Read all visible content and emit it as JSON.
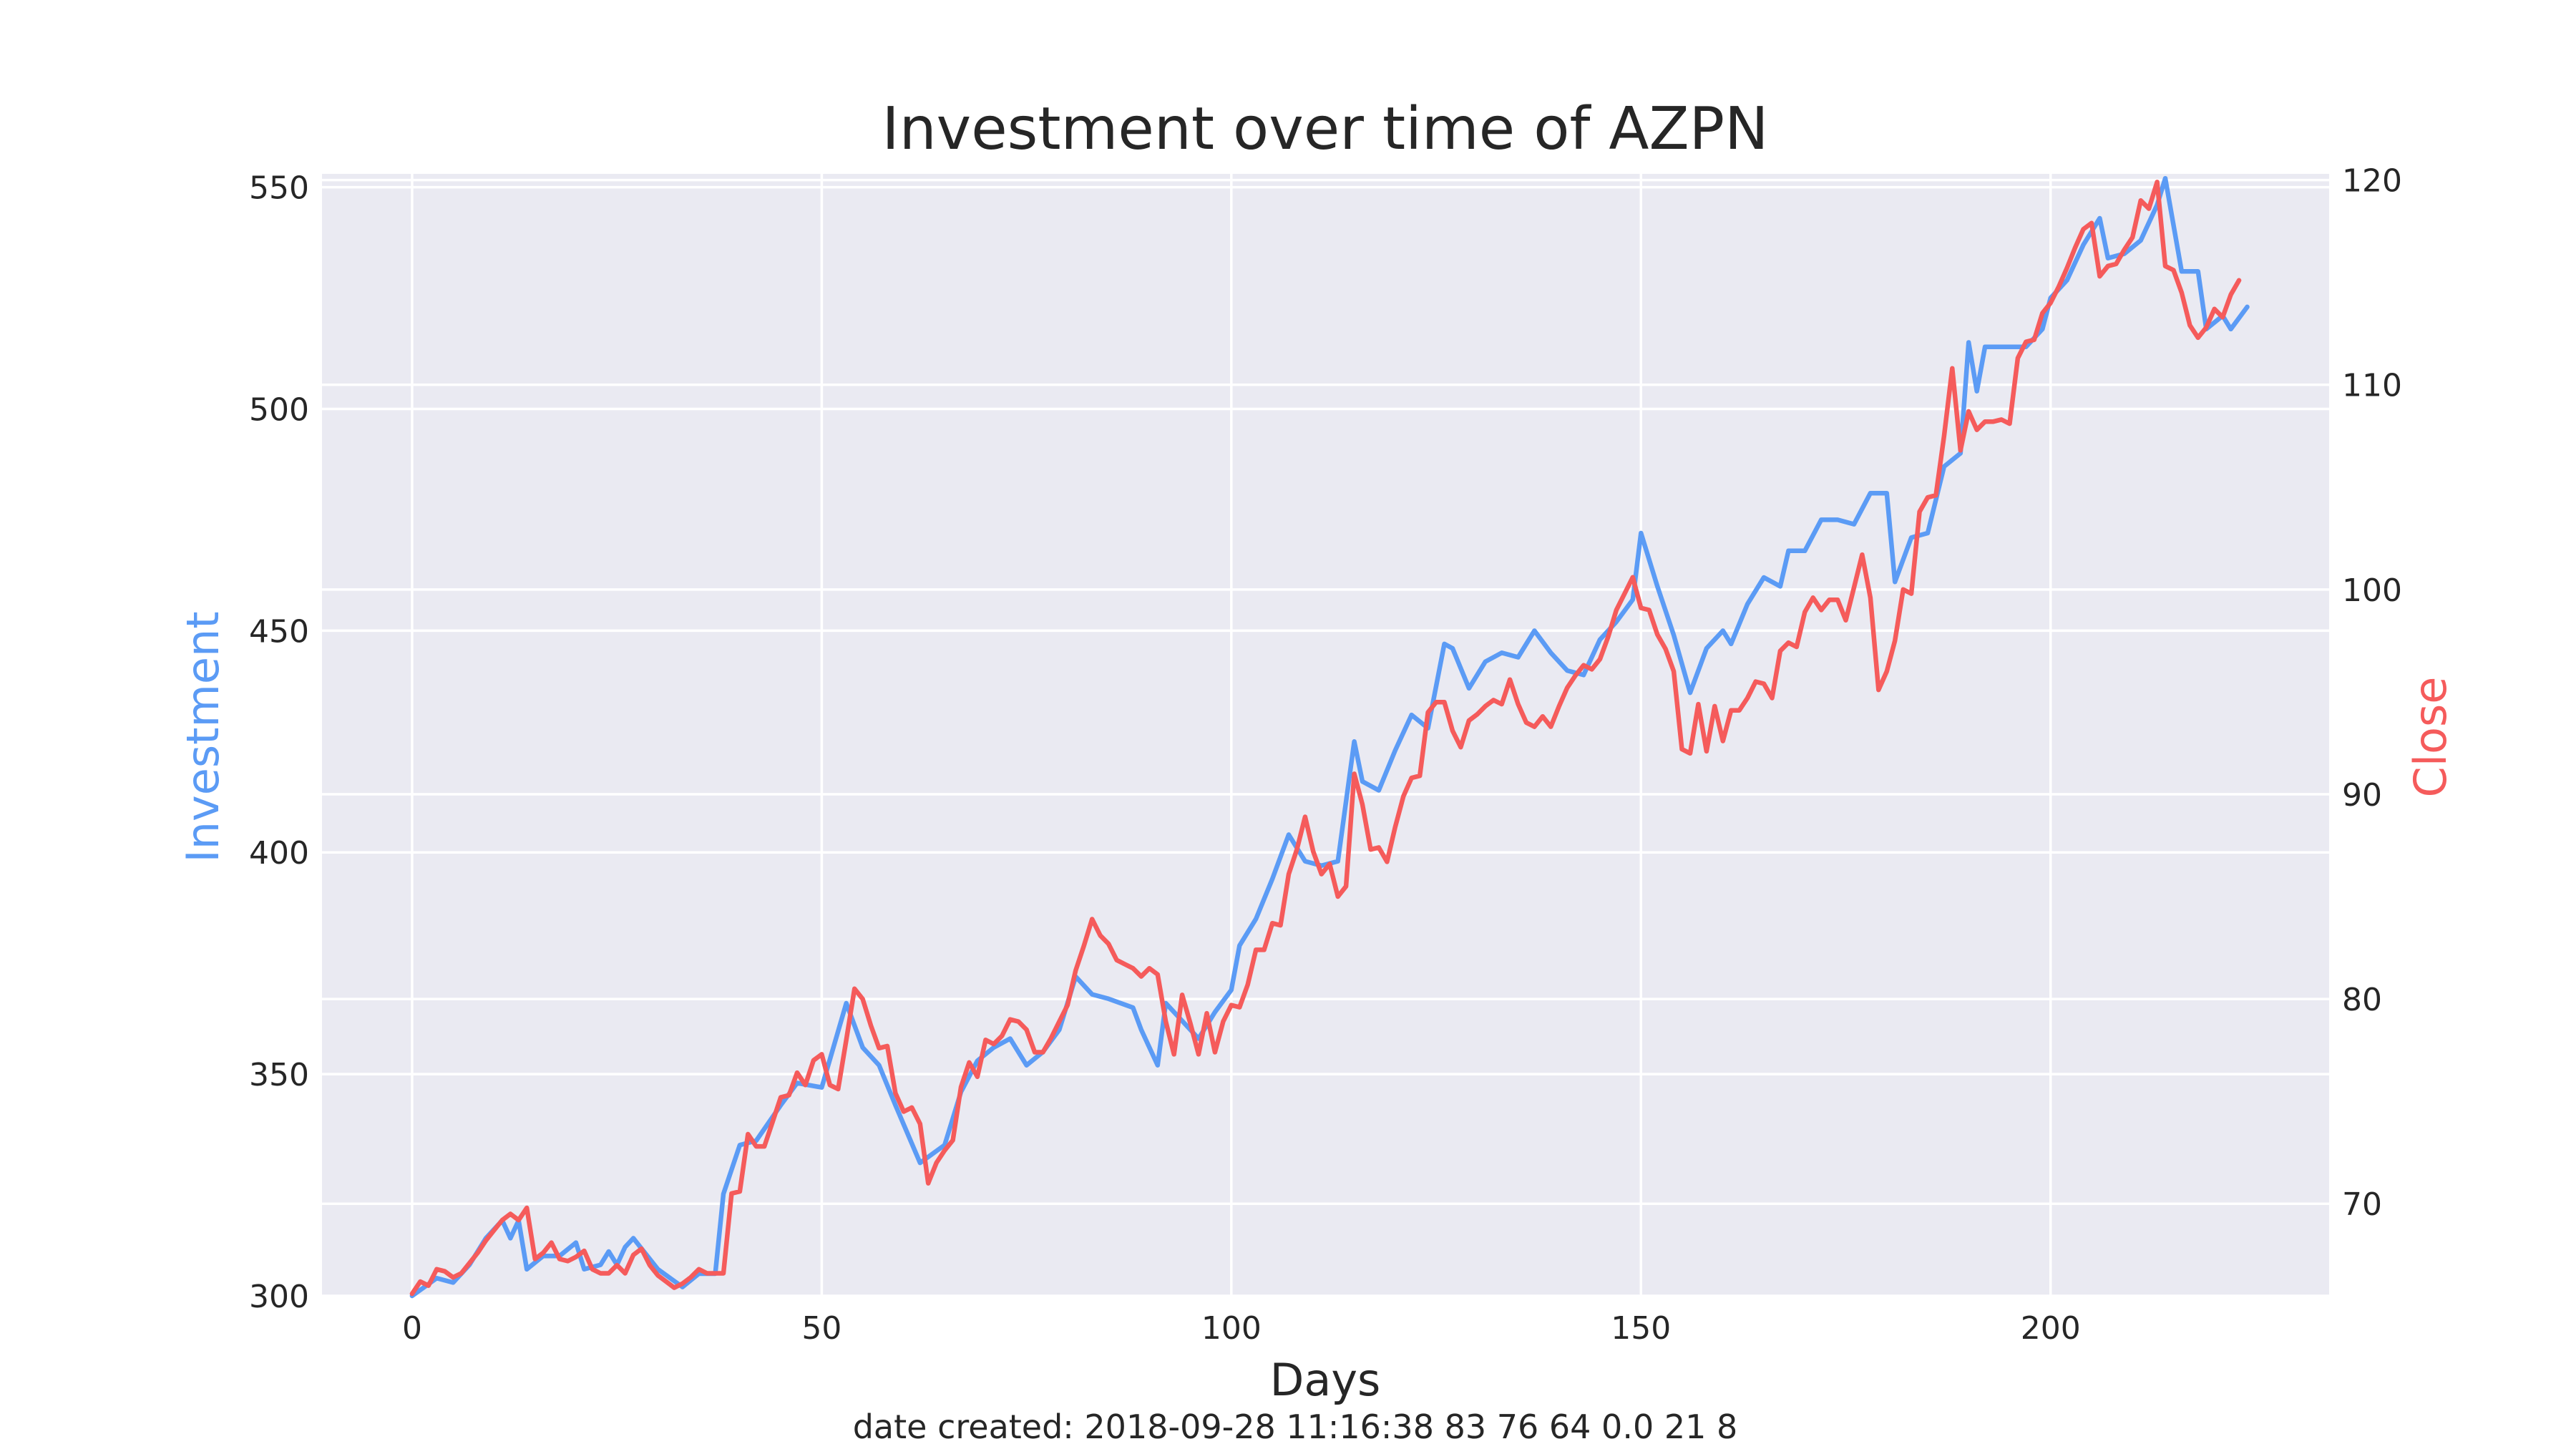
{
  "chart_data": {
    "type": "line",
    "title": "Investment over time of AZPN",
    "xlabel": "Days",
    "ylabel_left": "Investment",
    "ylabel_right": "Close",
    "footer": "date created: 2018-09-28 11:16:38 83 76 64 0.0 21 8",
    "xlim": [
      -11,
      234
    ],
    "ylim_left": [
      300,
      553
    ],
    "ylim_right": [
      65.5,
      120.3
    ],
    "x_ticks": [
      0,
      50,
      100,
      150,
      200
    ],
    "x_tick_labels": [
      "0",
      "50",
      "100",
      "150",
      "200"
    ],
    "y_left_ticks": [
      300,
      350,
      400,
      450,
      500,
      550
    ],
    "y_left_tick_labels": [
      "300",
      "350",
      "400",
      "450",
      "500",
      "550"
    ],
    "y_right_ticks": [
      70,
      80,
      90,
      100,
      110,
      120
    ],
    "y_right_tick_labels": [
      "70",
      "80",
      "90",
      "100",
      "110",
      "120"
    ],
    "grid": true,
    "colors": {
      "investment": "#5b9bf5",
      "close": "#f55b5b",
      "background": "#eaeaf2",
      "grid": "#ffffff",
      "text": "#262626"
    },
    "series": [
      {
        "axis": "left",
        "color": "#5b9bf5",
        "x": [
          0,
          3,
          5,
          7,
          9,
          11,
          12,
          13,
          14,
          16,
          18,
          20,
          21,
          23,
          24,
          25,
          26,
          27,
          30,
          33,
          35,
          37,
          38,
          40,
          42,
          45,
          47,
          50,
          53,
          55,
          57,
          59,
          62,
          65,
          67,
          69,
          71,
          73,
          75,
          77,
          79,
          81,
          83,
          85,
          88,
          89,
          91,
          92,
          94,
          96,
          98,
          100,
          101,
          103,
          105,
          107,
          109,
          111,
          113,
          115,
          116,
          118,
          120,
          122,
          124,
          126,
          127,
          129,
          131,
          133,
          135,
          137,
          139,
          141,
          143,
          145,
          147,
          149,
          150,
          152,
          154,
          156,
          158,
          160,
          161,
          163,
          165,
          167,
          168,
          170,
          172,
          174,
          176,
          178,
          180,
          181,
          183,
          185,
          187,
          189,
          190,
          191,
          192,
          193,
          195,
          197,
          199,
          200,
          202,
          204,
          206,
          207,
          209,
          211,
          213,
          214,
          216,
          218,
          219,
          221,
          222,
          224
        ],
        "y": [
          300,
          304,
          303,
          307,
          313,
          317,
          313,
          317,
          306,
          309,
          309,
          312,
          306,
          307,
          310,
          307,
          311,
          313,
          306,
          302,
          305,
          305,
          323,
          334,
          335,
          343,
          348,
          347,
          366,
          356,
          352,
          343,
          330,
          334,
          346,
          353,
          356,
          358,
          352,
          355,
          360,
          372,
          368,
          367,
          365,
          360,
          352,
          366,
          362,
          358,
          364,
          369,
          379,
          385,
          394,
          404,
          398,
          397,
          398,
          425,
          416,
          414,
          423,
          431,
          428,
          447,
          446,
          437,
          443,
          445,
          444,
          450,
          445,
          441,
          440,
          448,
          452,
          457,
          472,
          460,
          449,
          436,
          446,
          450,
          447,
          456,
          462,
          460,
          468,
          468,
          475,
          475,
          474,
          481,
          481,
          461,
          471,
          472,
          487,
          490,
          515,
          504,
          514,
          514,
          514,
          514,
          518,
          525,
          529,
          537,
          543,
          534,
          535,
          538,
          546,
          552,
          531,
          531,
          518,
          521,
          518,
          523
        ]
      },
      {
        "axis": "right",
        "color": "#f55b5b",
        "x": [
          0,
          1,
          2,
          3,
          4,
          5,
          6,
          7,
          8,
          9,
          10,
          11,
          12,
          13,
          14,
          15,
          16,
          17,
          18,
          19,
          20,
          21,
          22,
          23,
          24,
          25,
          26,
          27,
          28,
          29,
          30,
          31,
          32,
          33,
          34,
          35,
          36,
          37,
          38,
          39,
          40,
          41,
          42,
          43,
          44,
          45,
          46,
          47,
          48,
          49,
          50,
          51,
          52,
          53,
          54,
          55,
          56,
          57,
          58,
          59,
          60,
          61,
          62,
          63,
          64,
          65,
          66,
          67,
          68,
          69,
          70,
          71,
          72,
          73,
          74,
          75,
          76,
          77,
          78,
          79,
          80,
          81,
          82,
          83,
          84,
          85,
          86,
          87,
          88,
          89,
          90,
          91,
          92,
          93,
          94,
          95,
          96,
          97,
          98,
          99,
          100,
          101,
          102,
          103,
          104,
          105,
          106,
          107,
          108,
          109,
          110,
          111,
          112,
          113,
          114,
          115,
          116,
          117,
          118,
          119,
          120,
          121,
          122,
          123,
          124,
          125,
          126,
          127,
          128,
          129,
          130,
          131,
          132,
          133,
          134,
          135,
          136,
          137,
          138,
          139,
          140,
          141,
          142,
          143,
          144,
          145,
          146,
          147,
          148,
          149,
          150,
          151,
          152,
          153,
          154,
          155,
          156,
          157,
          158,
          159,
          160,
          161,
          162,
          163,
          164,
          165,
          166,
          167,
          168,
          169,
          170,
          171,
          172,
          173,
          174,
          175,
          176,
          177,
          178,
          179,
          180,
          181,
          182,
          183,
          184,
          185,
          186,
          187,
          188,
          189,
          190,
          191,
          192,
          193,
          194,
          195,
          196,
          197,
          198,
          199,
          200,
          201,
          202,
          203,
          204,
          205,
          206,
          207,
          208,
          209,
          210,
          211,
          212,
          213,
          214,
          215,
          216,
          217,
          218,
          219,
          220,
          221,
          222,
          223
        ],
        "y": [
          65.6,
          66.2,
          66.0,
          66.8,
          66.7,
          66.4,
          66.6,
          67.1,
          67.6,
          68.2,
          68.7,
          69.2,
          69.5,
          69.2,
          69.8,
          67.3,
          67.6,
          68.1,
          67.3,
          67.2,
          67.4,
          67.7,
          66.8,
          66.6,
          66.6,
          67.0,
          66.6,
          67.5,
          67.8,
          67.0,
          66.5,
          66.2,
          65.9,
          66.1,
          66.4,
          66.8,
          66.6,
          66.6,
          66.6,
          70.5,
          70.6,
          73.4,
          72.8,
          72.8,
          74.0,
          75.2,
          75.3,
          76.4,
          75.8,
          77.0,
          77.3,
          75.8,
          75.6,
          78.0,
          80.5,
          80.0,
          78.7,
          77.6,
          77.7,
          75.4,
          74.5,
          74.7,
          73.9,
          71.0,
          72.0,
          72.6,
          73.1,
          75.7,
          76.9,
          76.2,
          78.0,
          77.8,
          78.2,
          79.0,
          78.9,
          78.5,
          77.4,
          77.4,
          78.1,
          78.9,
          79.7,
          81.4,
          82.6,
          83.9,
          83.1,
          82.7,
          81.9,
          81.7,
          81.5,
          81.1,
          81.5,
          81.2,
          78.9,
          77.3,
          80.2,
          78.8,
          77.3,
          79.3,
          77.4,
          78.9,
          79.7,
          79.6,
          80.7,
          82.4,
          82.4,
          83.7,
          83.6,
          86.1,
          87.3,
          88.9,
          87.2,
          86.1,
          86.6,
          85.0,
          85.5,
          91.0,
          89.5,
          87.3,
          87.4,
          86.7,
          88.4,
          89.9,
          90.8,
          90.9,
          94.0,
          94.5,
          94.5,
          93.1,
          92.3,
          93.6,
          93.9,
          94.3,
          94.6,
          94.4,
          95.6,
          94.4,
          93.5,
          93.3,
          93.8,
          93.3,
          94.3,
          95.2,
          95.8,
          96.3,
          96.1,
          96.6,
          97.7,
          99.0,
          99.8,
          100.6,
          99.1,
          99.0,
          97.8,
          97.1,
          96.0,
          92.2,
          92.0,
          94.4,
          92.1,
          94.3,
          92.6,
          94.1,
          94.1,
          94.7,
          95.5,
          95.4,
          94.7,
          97.0,
          97.4,
          97.2,
          98.9,
          99.6,
          99.0,
          99.5,
          99.5,
          98.5,
          100.1,
          101.7,
          99.6,
          95.1,
          96.0,
          97.5,
          100.0,
          99.8,
          103.8,
          104.5,
          104.6,
          107.5,
          110.8,
          106.8,
          108.7,
          107.8,
          108.2,
          108.2,
          108.3,
          108.1,
          111.3,
          112.1,
          112.2,
          113.5,
          114.0,
          114.8,
          115.7,
          116.7,
          117.6,
          117.9,
          115.3,
          115.8,
          115.9,
          116.6,
          117.2,
          119.0,
          118.6,
          119.9,
          115.8,
          115.6,
          114.5,
          112.9,
          112.3,
          112.8,
          113.7,
          113.3,
          114.4,
          115.1
        ]
      }
    ]
  }
}
